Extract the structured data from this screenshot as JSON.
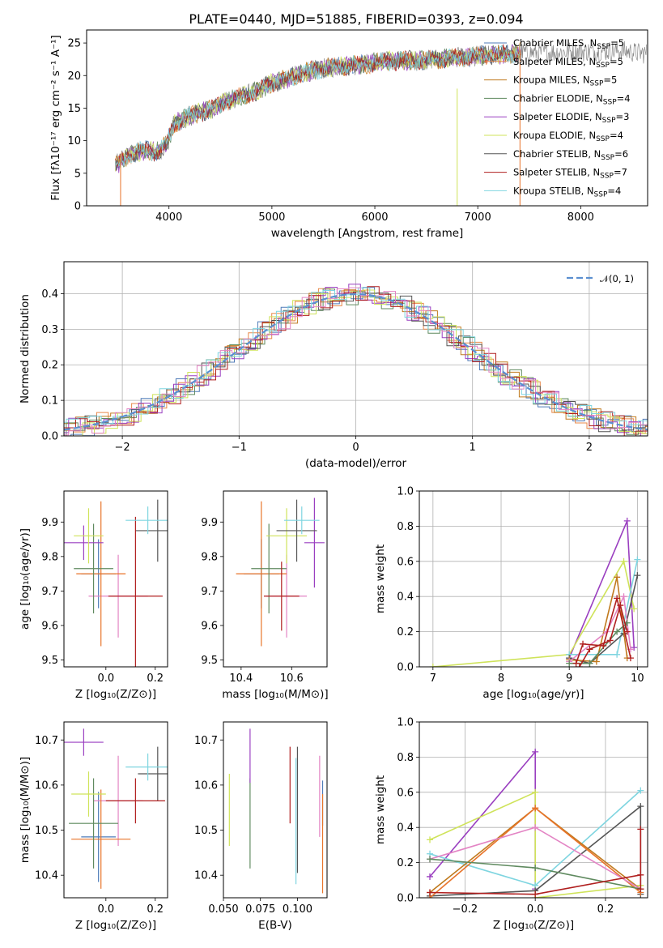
{
  "figure_title": "PLATE=0440, MJD=51885, FIBERID=0393, z=0.094",
  "colors": {
    "chabrier_miles": "#4f7bb8",
    "salpeter_miles": "#e8894a",
    "kroupa_miles": "#c07a1e",
    "chabrier_elodie": "#5f8a5f",
    "salpeter_elodie": "#9a3fc0",
    "kroupa_elodie": "#cfe35a",
    "chabrier_stelib": "#555555",
    "salpeter_stelib": "#b01f1f",
    "kroupa_stelib": "#7fd5e0",
    "pink": "#e384c4",
    "orange": "#e8742a",
    "gaussian": "#5b8fd0"
  },
  "chart_data": [
    {
      "id": "spectrum",
      "type": "line",
      "title": "PLATE=0440, MJD=51885, FIBERID=0393, z=0.094",
      "xlabel": "wavelength [Angstrom, rest frame]",
      "ylabel": "Flux [fλ10⁻¹⁷ erg cm⁻² s⁻¹ A⁻¹]",
      "xlim": [
        3200,
        8650
      ],
      "ylim": [
        0,
        27
      ],
      "xticks": [
        "4000",
        "5000",
        "6000",
        "7000",
        "8000"
      ],
      "yticks": [
        "0",
        "5",
        "10",
        "15",
        "20",
        "25"
      ],
      "grid": false,
      "legend_placement": "top-right",
      "legend": [
        {
          "label": "Chabrier MILES, N",
          "sub": "SSP",
          "tail": "=5",
          "color_key": "chabrier_miles"
        },
        {
          "label": "Salpeter MILES, N",
          "sub": "SSP",
          "tail": "=5",
          "color_key": "salpeter_miles"
        },
        {
          "label": "Kroupa MILES, N",
          "sub": "SSP",
          "tail": "=5",
          "color_key": "kroupa_miles"
        },
        {
          "label": "Chabrier ELODIE, N",
          "sub": "SSP",
          "tail": "=4",
          "color_key": "chabrier_elodie"
        },
        {
          "label": "Salpeter ELODIE, N",
          "sub": "SSP",
          "tail": "=3",
          "color_key": "salpeter_elodie"
        },
        {
          "label": "Kroupa ELODIE, N",
          "sub": "SSP",
          "tail": "=4",
          "color_key": "kroupa_elodie"
        },
        {
          "label": "Chabrier STELIB, N",
          "sub": "SSP",
          "tail": "=6",
          "color_key": "chabrier_stelib"
        },
        {
          "label": "Salpeter STELIB, N",
          "sub": "SSP",
          "tail": "=7",
          "color_key": "salpeter_stelib"
        },
        {
          "label": "Kroupa STELIB, N",
          "sub": "SSP",
          "tail": "=4",
          "color_key": "kroupa_stelib"
        }
      ],
      "continuum": [
        [
          3480,
          6.2
        ],
        [
          3600,
          7.8
        ],
        [
          3750,
          8.5
        ],
        [
          3900,
          8.3
        ],
        [
          3980,
          9.5
        ],
        [
          4050,
          12.5
        ],
        [
          4200,
          13.8
        ],
        [
          4400,
          14.8
        ],
        [
          4600,
          16.3
        ],
        [
          4800,
          17.3
        ],
        [
          5000,
          18.8
        ],
        [
          5200,
          19.8
        ],
        [
          5400,
          20.8
        ],
        [
          5600,
          21.3
        ],
        [
          5800,
          21.6
        ],
        [
          6000,
          22.0
        ],
        [
          6200,
          22.3
        ],
        [
          6400,
          22.3
        ],
        [
          6600,
          22.5
        ],
        [
          6800,
          22.8
        ],
        [
          7000,
          23.0
        ],
        [
          7200,
          23.2
        ],
        [
          7400,
          23.5
        ],
        [
          7600,
          23.5
        ],
        [
          8000,
          23.7
        ],
        [
          8400,
          23.8
        ],
        [
          8600,
          23.4
        ]
      ]
    },
    {
      "id": "residuals",
      "type": "line",
      "xlabel": "(data-model)/error",
      "ylabel": "Normed distribution",
      "xlim": [
        -2.5,
        2.5
      ],
      "ylim": [
        0,
        0.49
      ],
      "xticks": [
        "−2",
        "−1",
        "0",
        "1",
        "2"
      ],
      "yticks": [
        "0.0",
        "0.1",
        "0.2",
        "0.3",
        "0.4"
      ],
      "grid": true,
      "legend_placement": "top-right",
      "gaussian_label": "𝒩(0, 1)",
      "bin_width": 0.1
    },
    {
      "id": "age_vs_z",
      "type": "scatter",
      "xlabel": "Z [log₁₀(Z/Z⊙)]",
      "ylabel": "age  [log₁₀(age/yr)]",
      "xlim": [
        -0.17,
        0.25
      ],
      "ylim": [
        9.48,
        9.99
      ],
      "xticks": [
        "0.0",
        "0.2"
      ],
      "yticks": [
        "9.5",
        "9.6",
        "9.7",
        "9.8",
        "9.9"
      ],
      "points": [
        {
          "x": -0.03,
          "y": 9.75,
          "xerr": 0.07,
          "yerr": 0.1,
          "color_key": "chabrier_miles"
        },
        {
          "x": 0.05,
          "y": 9.685,
          "xerr": 0.12,
          "yerr": 0.12,
          "color_key": "pink"
        },
        {
          "x": -0.02,
          "y": 9.75,
          "xerr": 0.1,
          "yerr": 0.21,
          "color_key": "orange"
        },
        {
          "x": -0.05,
          "y": 9.765,
          "xerr": 0.08,
          "yerr": 0.13,
          "color_key": "chabrier_elodie"
        },
        {
          "x": -0.09,
          "y": 9.84,
          "xerr": 0.08,
          "yerr": 0.05,
          "color_key": "salpeter_elodie"
        },
        {
          "x": -0.07,
          "y": 9.86,
          "xerr": 0.06,
          "yerr": 0.08,
          "color_key": "kroupa_elodie"
        },
        {
          "x": 0.21,
          "y": 9.875,
          "xerr": 0.09,
          "yerr": 0.09,
          "color_key": "chabrier_stelib"
        },
        {
          "x": 0.12,
          "y": 9.685,
          "xerr": 0.11,
          "yerr": 0.23,
          "color_key": "salpeter_stelib"
        },
        {
          "x": 0.17,
          "y": 9.905,
          "xerr": 0.09,
          "yerr": 0.04,
          "color_key": "kroupa_stelib"
        }
      ]
    },
    {
      "id": "age_vs_mass",
      "type": "scatter",
      "xlabel": "mass [log₁₀(M/M⊙)]",
      "ylabel": "",
      "xlim": [
        10.33,
        10.74
      ],
      "ylim": [
        9.48,
        9.99
      ],
      "xticks": [
        "10.4",
        "10.6"
      ],
      "yticks": [
        "9.5",
        "9.6",
        "9.7",
        "9.8",
        "9.9"
      ],
      "points": [
        {
          "x": 10.48,
          "y": 9.75,
          "xerr": 0.07,
          "yerr": 0.1,
          "color_key": "chabrier_miles"
        },
        {
          "x": 10.58,
          "y": 9.685,
          "xerr": 0.08,
          "yerr": 0.12,
          "color_key": "pink"
        },
        {
          "x": 10.48,
          "y": 9.75,
          "xerr": 0.1,
          "yerr": 0.21,
          "color_key": "orange"
        },
        {
          "x": 10.51,
          "y": 9.765,
          "xerr": 0.07,
          "yerr": 0.13,
          "color_key": "chabrier_elodie"
        },
        {
          "x": 10.69,
          "y": 9.84,
          "xerr": 0.04,
          "yerr": 0.13,
          "color_key": "salpeter_elodie"
        },
        {
          "x": 10.58,
          "y": 9.86,
          "xerr": 0.08,
          "yerr": 0.08,
          "color_key": "kroupa_elodie"
        },
        {
          "x": 10.62,
          "y": 9.875,
          "xerr": 0.08,
          "yerr": 0.09,
          "color_key": "chabrier_stelib"
        },
        {
          "x": 10.56,
          "y": 9.685,
          "xerr": 0.07,
          "yerr": 0.1,
          "color_key": "salpeter_stelib"
        },
        {
          "x": 10.64,
          "y": 9.905,
          "xerr": 0.07,
          "yerr": 0.04,
          "color_key": "kroupa_stelib"
        }
      ]
    },
    {
      "id": "mass_weight_vs_age",
      "type": "line",
      "xlabel": "age  [log₁₀(age/yr)]",
      "ylabel": "mass weight",
      "xlim": [
        6.8,
        10.15
      ],
      "ylim": [
        0,
        1
      ],
      "xticks": [
        "7",
        "8",
        "9",
        "10"
      ],
      "yticks": [
        "0.0",
        "0.2",
        "0.4",
        "0.6",
        "0.8",
        "1.0"
      ],
      "grid": true,
      "series": [
        {
          "color_key": "salpeter_elodie",
          "points": [
            [
              9.0,
              0.05
            ],
            [
              9.85,
              0.83
            ],
            [
              9.95,
              0.11
            ]
          ]
        },
        {
          "color_key": "kroupa_elodie",
          "points": [
            [
              7.0,
              0.0
            ],
            [
              9.0,
              0.07
            ],
            [
              9.8,
              0.6
            ],
            [
              9.95,
              0.33
            ]
          ]
        },
        {
          "color_key": "kroupa_stelib",
          "points": [
            [
              9.0,
              0.07
            ],
            [
              9.7,
              0.07
            ],
            [
              10.0,
              0.61
            ]
          ]
        },
        {
          "color_key": "chabrier_stelib",
          "points": [
            [
              9.0,
              0.05
            ],
            [
              9.3,
              0.02
            ],
            [
              9.8,
              0.19
            ],
            [
              10.0,
              0.52
            ]
          ]
        },
        {
          "color_key": "kroupa_miles",
          "points": [
            [
              9.0,
              0.04
            ],
            [
              9.4,
              0.03
            ],
            [
              9.7,
              0.51
            ],
            [
              9.85,
              0.05
            ]
          ]
        },
        {
          "color_key": "pink",
          "points": [
            [
              9.0,
              0.03
            ],
            [
              9.55,
              0.2
            ],
            [
              9.8,
              0.4
            ],
            [
              9.9,
              0.1
            ]
          ]
        },
        {
          "color_key": "chabrier_elodie",
          "points": [
            [
              9.0,
              0.02
            ],
            [
              9.3,
              0.02
            ],
            [
              9.7,
              0.2
            ],
            [
              9.85,
              0.25
            ]
          ]
        },
        {
          "color_key": "salpeter_stelib",
          "points": [
            [
              9.1,
              0.02
            ],
            [
              9.2,
              0.13
            ],
            [
              9.5,
              0.12
            ],
            [
              9.7,
              0.39
            ],
            [
              9.9,
              0.05
            ]
          ]
        },
        {
          "color_key": "salpeter_stelib",
          "points": [
            [
              9.15,
              0.0
            ],
            [
              9.3,
              0.1
            ],
            [
              9.6,
              0.15
            ],
            [
              9.75,
              0.35
            ],
            [
              9.85,
              0.2
            ]
          ]
        }
      ]
    },
    {
      "id": "mass_vs_z",
      "type": "scatter",
      "xlabel": "Z [log₁₀(Z/Z⊙)]",
      "ylabel": "mass [log₁₀(M/M⊙)]",
      "xlim": [
        -0.17,
        0.25
      ],
      "ylim": [
        10.35,
        10.74
      ],
      "xticks": [
        "0.0",
        "0.2"
      ],
      "yticks": [
        "10.4",
        "10.5",
        "10.6",
        "10.7"
      ],
      "points": [
        {
          "x": -0.03,
          "y": 10.485,
          "xerr": 0.07,
          "yerr": 0.1,
          "color_key": "chabrier_miles"
        },
        {
          "x": 0.05,
          "y": 10.565,
          "xerr": 0.1,
          "yerr": 0.1,
          "color_key": "pink"
        },
        {
          "x": -0.02,
          "y": 10.48,
          "xerr": 0.12,
          "yerr": 0.11,
          "color_key": "orange"
        },
        {
          "x": -0.05,
          "y": 10.515,
          "xerr": 0.1,
          "yerr": 0.1,
          "color_key": "chabrier_elodie"
        },
        {
          "x": -0.09,
          "y": 10.695,
          "xerr": 0.08,
          "yerr": 0.03,
          "color_key": "salpeter_elodie"
        },
        {
          "x": -0.07,
          "y": 10.58,
          "xerr": 0.07,
          "yerr": 0.05,
          "color_key": "kroupa_elodie"
        },
        {
          "x": 0.21,
          "y": 10.625,
          "xerr": 0.08,
          "yerr": 0.06,
          "color_key": "chabrier_stelib"
        },
        {
          "x": 0.12,
          "y": 10.565,
          "xerr": 0.12,
          "yerr": 0.05,
          "color_key": "salpeter_stelib"
        },
        {
          "x": 0.17,
          "y": 10.64,
          "xerr": 0.09,
          "yerr": 0.03,
          "color_key": "kroupa_stelib"
        }
      ]
    },
    {
      "id": "mass_vs_ebv",
      "type": "scatter",
      "xlabel": "E(B-V)",
      "ylabel": "",
      "xlim": [
        0.05,
        0.12
      ],
      "ylim": [
        10.35,
        10.74
      ],
      "xticks": [
        "0.050",
        "0.075",
        "0.100"
      ],
      "yticks": [
        "10.4",
        "10.5",
        "10.6",
        "10.7"
      ],
      "points": [
        {
          "x": 0.117,
          "y": 10.56,
          "xerr": 0,
          "yerr": 0.05,
          "color_key": "chabrier_miles"
        },
        {
          "x": 0.115,
          "y": 10.575,
          "xerr": 0,
          "yerr": 0.09,
          "color_key": "pink"
        },
        {
          "x": 0.117,
          "y": 10.47,
          "xerr": 0,
          "yerr": 0.11,
          "color_key": "orange"
        },
        {
          "x": 0.068,
          "y": 10.515,
          "xerr": 0,
          "yerr": 0.1,
          "color_key": "chabrier_elodie"
        },
        {
          "x": 0.068,
          "y": 10.665,
          "xerr": 0,
          "yerr": 0.06,
          "color_key": "salpeter_elodie"
        },
        {
          "x": 0.054,
          "y": 10.545,
          "xerr": 0,
          "yerr": 0.08,
          "color_key": "kroupa_elodie"
        },
        {
          "x": 0.1,
          "y": 10.545,
          "xerr": 0,
          "yerr": 0.14,
          "color_key": "chabrier_stelib"
        },
        {
          "x": 0.095,
          "y": 10.6,
          "xerr": 0,
          "yerr": 0.085,
          "color_key": "salpeter_stelib"
        },
        {
          "x": 0.099,
          "y": 10.52,
          "xerr": 0,
          "yerr": 0.14,
          "color_key": "kroupa_stelib"
        }
      ]
    },
    {
      "id": "mass_weight_vs_z",
      "type": "line",
      "xlabel": "Z [log₁₀(Z/Z⊙)]",
      "ylabel": "mass weight",
      "xlim": [
        -0.33,
        0.32
      ],
      "ylim": [
        0,
        1
      ],
      "xticks": [
        "−0.2",
        "0.0",
        "0.2"
      ],
      "yticks": [
        "0.0",
        "0.2",
        "0.4",
        "0.6",
        "0.8",
        "1.0"
      ],
      "grid": true,
      "series": [
        {
          "color_key": "salpeter_elodie",
          "points": [
            [
              -0.3,
              0.12
            ],
            [
              0.0,
              0.83
            ],
            [
              0.0,
              0.05
            ]
          ]
        },
        {
          "color_key": "kroupa_elodie",
          "points": [
            [
              -0.3,
              0.33
            ],
            [
              0.0,
              0.6
            ],
            [
              0.0,
              0.0
            ],
            [
              0.3,
              0.07
            ]
          ]
        },
        {
          "color_key": "kroupa_stelib",
          "points": [
            [
              -0.3,
              0.25
            ],
            [
              0.0,
              0.07
            ],
            [
              0.3,
              0.61
            ]
          ]
        },
        {
          "color_key": "chabrier_stelib",
          "points": [
            [
              -0.3,
              0.01
            ],
            [
              0.0,
              0.04
            ],
            [
              0.3,
              0.52
            ],
            [
              0.3,
              0.02
            ]
          ]
        },
        {
          "color_key": "kroupa_miles",
          "points": [
            [
              -0.3,
              0.03
            ],
            [
              0.0,
              0.51
            ],
            [
              0.3,
              0.05
            ]
          ]
        },
        {
          "color_key": "orange",
          "points": [
            [
              -0.3,
              0.0
            ],
            [
              0.0,
              0.51
            ],
            [
              0.3,
              0.03
            ]
          ]
        },
        {
          "color_key": "pink",
          "points": [
            [
              -0.3,
              0.22
            ],
            [
              0.0,
              0.4
            ],
            [
              0.3,
              0.05
            ]
          ]
        },
        {
          "color_key": "chabrier_elodie",
          "points": [
            [
              -0.3,
              0.22
            ],
            [
              0.0,
              0.17
            ],
            [
              0.3,
              0.05
            ]
          ]
        },
        {
          "color_key": "salpeter_stelib",
          "points": [
            [
              -0.3,
              0.03
            ],
            [
              0.0,
              0.02
            ],
            [
              0.3,
              0.13
            ],
            [
              0.3,
              0.39
            ],
            [
              0.3,
              0.05
            ]
          ]
        }
      ]
    }
  ]
}
